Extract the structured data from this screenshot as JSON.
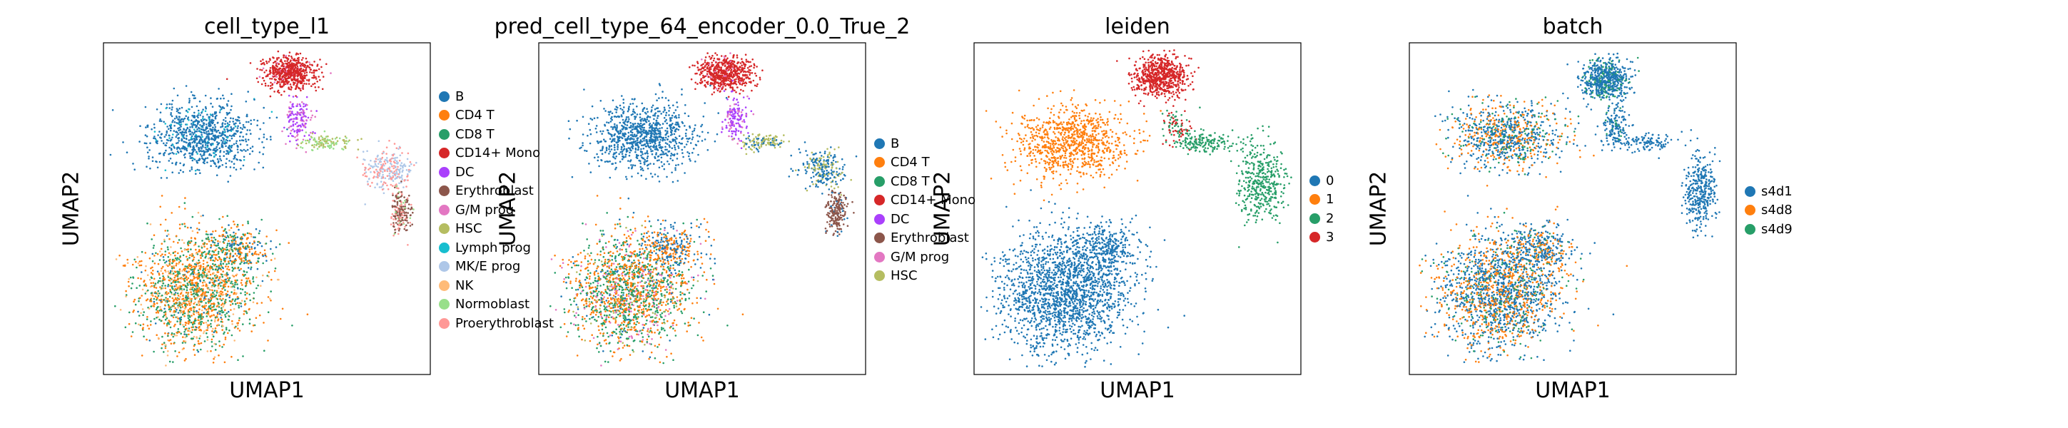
{
  "chart_data": [
    {
      "type": "scatter",
      "title": "cell_type_l1",
      "xlabel": "UMAP1",
      "ylabel": "UMAP2",
      "legend_position": "right",
      "grid": false,
      "legend": [
        {
          "label": "B",
          "color": "#1f77b4"
        },
        {
          "label": "CD4 T",
          "color": "#ff7f0e"
        },
        {
          "label": "CD8 T",
          "color": "#279e68"
        },
        {
          "label": "CD14+ Mono",
          "color": "#d62728"
        },
        {
          "label": "DC",
          "color": "#aa40fc"
        },
        {
          "label": "Erythroblast",
          "color": "#8c564b"
        },
        {
          "label": "G/M prog",
          "color": "#e377c2"
        },
        {
          "label": "HSC",
          "color": "#b5bd61"
        },
        {
          "label": "Lymph prog",
          "color": "#17becf"
        },
        {
          "label": "MK/E prog",
          "color": "#aec7e8"
        },
        {
          "label": "NK",
          "color": "#ffbb78"
        },
        {
          "label": "Normoblast",
          "color": "#98df8a"
        },
        {
          "label": "Proerythroblast",
          "color": "#ff9896"
        }
      ]
    },
    {
      "type": "scatter",
      "title": "pred_cell_type_64_encoder_0.0_True_2",
      "xlabel": "UMAP1",
      "ylabel": "UMAP2",
      "legend_position": "right",
      "grid": false,
      "legend": [
        {
          "label": "B",
          "color": "#1f77b4"
        },
        {
          "label": "CD4 T",
          "color": "#ff7f0e"
        },
        {
          "label": "CD8 T",
          "color": "#279e68"
        },
        {
          "label": "CD14+ Mono",
          "color": "#d62728"
        },
        {
          "label": "DC",
          "color": "#aa40fc"
        },
        {
          "label": "Erythroblast",
          "color": "#8c564b"
        },
        {
          "label": "G/M prog",
          "color": "#e377c2"
        },
        {
          "label": "HSC",
          "color": "#b5bd61"
        }
      ]
    },
    {
      "type": "scatter",
      "title": "leiden",
      "xlabel": "UMAP1",
      "ylabel": "UMAP2",
      "legend_position": "right",
      "grid": false,
      "legend": [
        {
          "label": "0",
          "color": "#1f77b4"
        },
        {
          "label": "1",
          "color": "#ff7f0e"
        },
        {
          "label": "2",
          "color": "#279e68"
        },
        {
          "label": "3",
          "color": "#d62728"
        }
      ]
    },
    {
      "type": "scatter",
      "title": "batch",
      "xlabel": "UMAP1",
      "ylabel": "UMAP2",
      "legend_position": "right",
      "grid": false,
      "legend": [
        {
          "label": "s4d1",
          "color": "#1f77b4"
        },
        {
          "label": "s4d8",
          "color": "#ff7f0e"
        },
        {
          "label": "s4d9",
          "color": "#279e68"
        }
      ]
    }
  ]
}
